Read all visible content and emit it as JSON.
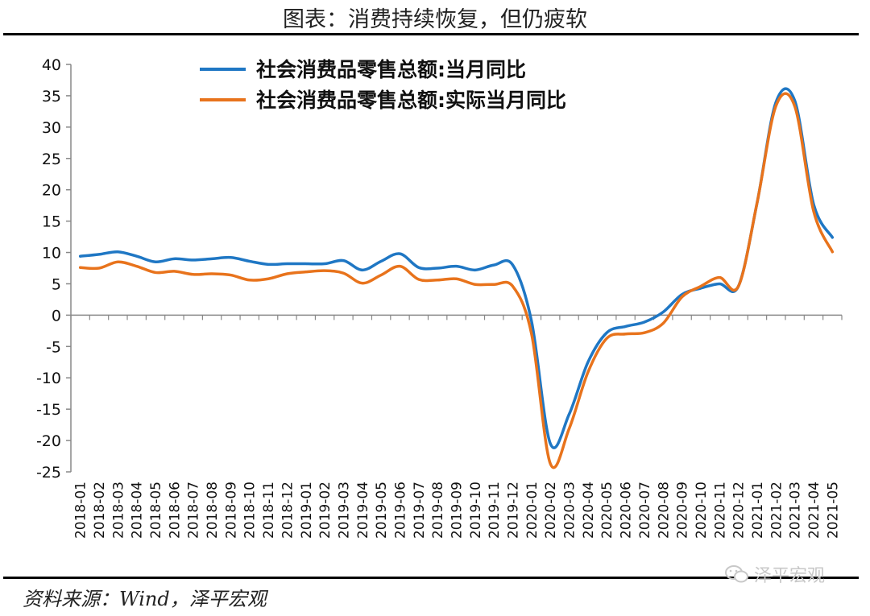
{
  "title": "图表：消费持续恢复，但仍疲软",
  "source": "资料来源：Wind，泽平宏观",
  "watermark": "泽平宏观",
  "colors": {
    "series1": "#1f77c4",
    "series2": "#e8731c",
    "axis": "#888888"
  },
  "chart_data": {
    "type": "line",
    "ylim": [
      -25,
      40
    ],
    "yticks": [
      40,
      35,
      30,
      25,
      20,
      15,
      10,
      5,
      0,
      -5,
      -10,
      -15,
      -20,
      -25
    ],
    "legend_position": "top",
    "grid": false,
    "x": [
      "2018-01",
      "2018-02",
      "2018-03",
      "2018-04",
      "2018-05",
      "2018-06",
      "2018-07",
      "2018-08",
      "2018-09",
      "2018-10",
      "2018-11",
      "2018-12",
      "2019-01",
      "2019-02",
      "2019-03",
      "2019-04",
      "2019-05",
      "2019-06",
      "2019-07",
      "2019-08",
      "2019-09",
      "2019-10",
      "2019-11",
      "2019-12",
      "2020-01",
      "2020-02",
      "2020-03",
      "2020-04",
      "2020-05",
      "2020-06",
      "2020-07",
      "2020-08",
      "2020-09",
      "2020-10",
      "2020-11",
      "2020-12",
      "2021-01",
      "2021-02",
      "2021-03",
      "2021-04",
      "2021-05"
    ],
    "series": [
      {
        "name": "社会消费品零售总额:当月同比",
        "color": "#1f77c4",
        "values": [
          9.4,
          9.7,
          10.1,
          9.4,
          8.5,
          9.0,
          8.8,
          9.0,
          9.2,
          8.6,
          8.1,
          8.2,
          8.2,
          8.2,
          8.7,
          7.2,
          8.6,
          9.8,
          7.6,
          7.5,
          7.8,
          7.2,
          8.0,
          8.0,
          -1.0,
          -20.5,
          -15.8,
          -7.5,
          -2.8,
          -1.8,
          -1.1,
          0.5,
          3.3,
          4.3,
          5.0,
          4.6,
          18.0,
          34.0,
          34.2,
          17.7,
          12.4
        ]
      },
      {
        "name": "社会消费品零售总额:实际当月同比",
        "color": "#e8731c",
        "values": [
          7.6,
          7.5,
          8.5,
          7.8,
          6.8,
          7.0,
          6.5,
          6.6,
          6.4,
          5.6,
          5.8,
          6.6,
          6.9,
          7.1,
          6.7,
          5.1,
          6.4,
          7.8,
          5.7,
          5.6,
          5.8,
          4.9,
          4.9,
          4.6,
          -3.0,
          -23.7,
          -18.1,
          -9.1,
          -3.7,
          -3.0,
          -2.8,
          -1.3,
          2.9,
          4.6,
          6.0,
          4.6,
          18.0,
          33.4,
          33.3,
          16.6,
          10.1
        ]
      }
    ]
  }
}
